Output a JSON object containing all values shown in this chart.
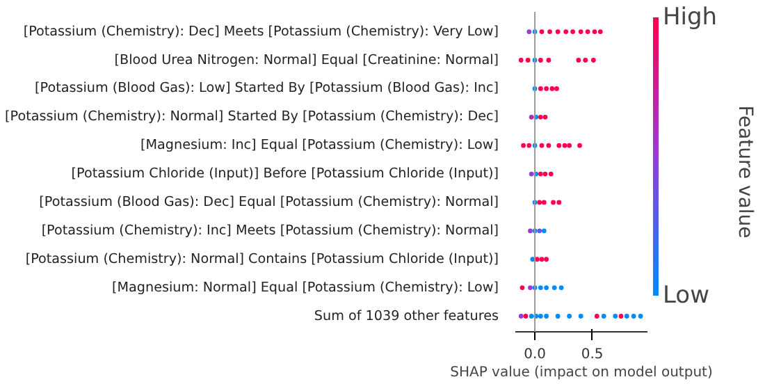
{
  "chart_data": {
    "type": "scatter",
    "orientation": "horizontal",
    "xlabel": "SHAP value (impact on model output)",
    "clabel": "Feature value",
    "categories": [
      "[Potassium (Chemistry): Dec] Meets [Potassium (Chemistry): Very Low]",
      "[Blood Urea Nitrogen: Normal] Equal [Creatinine: Normal]",
      "[Potassium (Blood Gas): Low] Started By [Potassium (Blood Gas): Inc]",
      "[Potassium (Chemistry): Normal] Started By [Potassium (Chemistry): Dec]",
      "[Magnesium: Inc] Equal [Potassium (Chemistry): Low]",
      "[Potassium Chloride (Input)] Before [Potassium Chloride (Input)]",
      "[Potassium (Blood Gas): Dec] Equal [Potassium (Chemistry): Normal]",
      "[Potassium (Chemistry): Inc] Meets [Potassium (Chemistry): Normal]",
      "[Potassium (Chemistry): Normal] Contains [Potassium Chloride (Input)]",
      "[Magnesium: Normal] Equal [Potassium (Chemistry): Low]",
      "Sum of 1039 other features"
    ],
    "xlim": [
      -0.17,
      0.98
    ],
    "xticks": [
      {
        "value": 0,
        "label": "0.0"
      },
      {
        "value": 0.5,
        "label": "0.5"
      }
    ],
    "clim": [
      0,
      1
    ],
    "cticks": [
      {
        "value": 0,
        "label": "Low"
      },
      {
        "value": 1,
        "label": "High"
      }
    ],
    "ref_lines": [
      {
        "axis": "x",
        "value": 0,
        "color": "#999999"
      }
    ],
    "marker": "circle",
    "grid": false,
    "series": [
      {
        "x": [
          "[Potassium (Chemistry): Dec] Meets [Potassium (Chemistry): Very Low]",
          "[Potassium (Chemistry): Dec] Meets [Potassium (Chemistry): Very Low]",
          "[Potassium (Chemistry): Dec] Meets [Potassium (Chemistry): Very Low]",
          "[Potassium (Chemistry): Dec] Meets [Potassium (Chemistry): Very Low]",
          "[Potassium (Chemistry): Dec] Meets [Potassium (Chemistry): Very Low]",
          "[Potassium (Chemistry): Dec] Meets [Potassium (Chemistry): Very Low]",
          "[Potassium (Chemistry): Dec] Meets [Potassium (Chemistry): Very Low]",
          "[Potassium (Chemistry): Dec] Meets [Potassium (Chemistry): Very Low]",
          "[Potassium (Chemistry): Dec] Meets [Potassium (Chemistry): Very Low]",
          "[Potassium (Chemistry): Dec] Meets [Potassium (Chemistry): Very Low]",
          "[Potassium (Chemistry): Dec] Meets [Potassium (Chemistry): Very Low]"
        ],
        "values": [
          -0.05,
          0,
          0.06,
          0.13,
          0.2,
          0.27,
          0.33,
          0.4,
          0.46,
          0.52,
          0.57
        ],
        "colors": [
          "#963cdc",
          "#008bfb",
          "#ff0052",
          "#ff0052",
          "#ff0052",
          "#ff0052",
          "#ff0052",
          "#ff0052",
          "#ff0052",
          "#ff0052",
          "#ff0052"
        ]
      },
      {
        "x": [
          "[Blood Urea Nitrogen: Normal] Equal [Creatinine: Normal]",
          "[Blood Urea Nitrogen: Normal] Equal [Creatinine: Normal]",
          "[Blood Urea Nitrogen: Normal] Equal [Creatinine: Normal]",
          "[Blood Urea Nitrogen: Normal] Equal [Creatinine: Normal]",
          "[Blood Urea Nitrogen: Normal] Equal [Creatinine: Normal]",
          "[Blood Urea Nitrogen: Normal] Equal [Creatinine: Normal]",
          "[Blood Urea Nitrogen: Normal] Equal [Creatinine: Normal]",
          "[Blood Urea Nitrogen: Normal] Equal [Creatinine: Normal]"
        ],
        "values": [
          -0.12,
          -0.06,
          0,
          0.05,
          0.12,
          0.38,
          0.44,
          0.51
        ],
        "colors": [
          "#ff0052",
          "#ff0052",
          "#008bfb",
          "#ff0052",
          "#ff0052",
          "#ff0052",
          "#ff0052",
          "#ff0052"
        ]
      },
      {
        "x": [
          "[Potassium (Blood Gas): Low] Started By [Potassium (Blood Gas): Inc]",
          "[Potassium (Blood Gas): Low] Started By [Potassium (Blood Gas): Inc]",
          "[Potassium (Blood Gas): Low] Started By [Potassium (Blood Gas): Inc]",
          "[Potassium (Blood Gas): Low] Started By [Potassium (Blood Gas): Inc]",
          "[Potassium (Blood Gas): Low] Started By [Potassium (Blood Gas): Inc]"
        ],
        "values": [
          0,
          0.05,
          0.1,
          0.15,
          0.19
        ],
        "colors": [
          "#008bfb",
          "#ff0052",
          "#ff0052",
          "#ff0052",
          "#ff0052"
        ]
      },
      {
        "x": [
          "[Potassium (Chemistry): Normal] Started By [Potassium (Chemistry): Dec]",
          "[Potassium (Chemistry): Normal] Started By [Potassium (Chemistry): Dec]",
          "[Potassium (Chemistry): Normal] Started By [Potassium (Chemistry): Dec]",
          "[Potassium (Chemistry): Normal] Started By [Potassium (Chemistry): Dec]"
        ],
        "values": [
          -0.03,
          0.01,
          0.05,
          0.09
        ],
        "colors": [
          "#c024a5",
          "#008bfb",
          "#ff0052",
          "#ff0052"
        ]
      },
      {
        "x": [
          "[Magnesium: Inc] Equal [Potassium (Chemistry): Low]",
          "[Magnesium: Inc] Equal [Potassium (Chemistry): Low]",
          "[Magnesium: Inc] Equal [Potassium (Chemistry): Low]",
          "[Magnesium: Inc] Equal [Potassium (Chemistry): Low]",
          "[Magnesium: Inc] Equal [Potassium (Chemistry): Low]",
          "[Magnesium: Inc] Equal [Potassium (Chemistry): Low]",
          "[Magnesium: Inc] Equal [Potassium (Chemistry): Low]",
          "[Magnesium: Inc] Equal [Potassium (Chemistry): Low]",
          "[Magnesium: Inc] Equal [Potassium (Chemistry): Low]"
        ],
        "values": [
          -0.1,
          -0.05,
          0,
          0.06,
          0.12,
          0.21,
          0.26,
          0.3,
          0.39
        ],
        "colors": [
          "#ff0052",
          "#ff0052",
          "#008bfb",
          "#ff0052",
          "#ff0052",
          "#ff0052",
          "#ff0052",
          "#ff0052",
          "#ff0052"
        ]
      },
      {
        "x": [
          "[Potassium Chloride (Input)] Before [Potassium Chloride (Input)]",
          "[Potassium Chloride (Input)] Before [Potassium Chloride (Input)]",
          "[Potassium Chloride (Input)] Before [Potassium Chloride (Input)]",
          "[Potassium Chloride (Input)] Before [Potassium Chloride (Input)]",
          "[Potassium Chloride (Input)] Before [Potassium Chloride (Input)]"
        ],
        "values": [
          -0.03,
          0.01,
          0.05,
          0.09,
          0.14
        ],
        "colors": [
          "#963cdc",
          "#008bfb",
          "#ff0052",
          "#ff0052",
          "#ff0052"
        ]
      },
      {
        "x": [
          "[Potassium (Blood Gas): Dec] Equal [Potassium (Chemistry): Normal]",
          "[Potassium (Blood Gas): Dec] Equal [Potassium (Chemistry): Normal]",
          "[Potassium (Blood Gas): Dec] Equal [Potassium (Chemistry): Normal]",
          "[Potassium (Blood Gas): Dec] Equal [Potassium (Chemistry): Normal]",
          "[Potassium (Blood Gas): Dec] Equal [Potassium (Chemistry): Normal]"
        ],
        "values": [
          0,
          0.04,
          0.08,
          0.16,
          0.21
        ],
        "colors": [
          "#008bfb",
          "#ff0052",
          "#ff0052",
          "#ff0052",
          "#ff0052"
        ]
      },
      {
        "x": [
          "[Potassium (Chemistry): Inc] Meets [Potassium (Chemistry): Normal]",
          "[Potassium (Chemistry): Inc] Meets [Potassium (Chemistry): Normal]",
          "[Potassium (Chemistry): Inc] Meets [Potassium (Chemistry): Normal]",
          "[Potassium (Chemistry): Inc] Meets [Potassium (Chemistry): Normal]"
        ],
        "values": [
          -0.04,
          0,
          0.04,
          0.08
        ],
        "colors": [
          "#963cdc",
          "#008bfb",
          "#5a5ce8",
          "#008bfb"
        ]
      },
      {
        "x": [
          "[Potassium (Chemistry): Normal] Contains [Potassium Chloride (Input)]",
          "[Potassium (Chemistry): Normal] Contains [Potassium Chloride (Input)]",
          "[Potassium (Chemistry): Normal] Contains [Potassium Chloride (Input)]",
          "[Potassium (Chemistry): Normal] Contains [Potassium Chloride (Input)]"
        ],
        "values": [
          -0.02,
          0.02,
          0.06,
          0.1
        ],
        "colors": [
          "#008bfb",
          "#ff0052",
          "#ff0052",
          "#ff0052"
        ]
      },
      {
        "x": [
          "[Magnesium: Normal] Equal [Potassium (Chemistry): Low]",
          "[Magnesium: Normal] Equal [Potassium (Chemistry): Low]",
          "[Magnesium: Normal] Equal [Potassium (Chemistry): Low]",
          "[Magnesium: Normal] Equal [Potassium (Chemistry): Low]",
          "[Magnesium: Normal] Equal [Potassium (Chemistry): Low]",
          "[Magnesium: Normal] Equal [Potassium (Chemistry): Low]",
          "[Magnesium: Normal] Equal [Potassium (Chemistry): Low]"
        ],
        "values": [
          -0.11,
          -0.04,
          0,
          0.05,
          0.1,
          0.17,
          0.23
        ],
        "colors": [
          "#ff0052",
          "#963cdc",
          "#008bfb",
          "#008bfb",
          "#008bfb",
          "#008bfb",
          "#008bfb"
        ]
      },
      {
        "x": [
          "Sum of 1039 other features",
          "Sum of 1039 other features",
          "Sum of 1039 other features",
          "Sum of 1039 other features",
          "Sum of 1039 other features",
          "Sum of 1039 other features",
          "Sum of 1039 other features",
          "Sum of 1039 other features",
          "Sum of 1039 other features",
          "Sum of 1039 other features",
          "Sum of 1039 other features",
          "Sum of 1039 other features",
          "Sum of 1039 other features",
          "Sum of 1039 other features",
          "Sum of 1039 other features",
          "Sum of 1039 other features"
        ],
        "values": [
          -0.12,
          -0.08,
          -0.03,
          0.01,
          0.05,
          0.1,
          0.2,
          0.3,
          0.4,
          0.54,
          0.6,
          0.7,
          0.75,
          0.8,
          0.86,
          0.92
        ],
        "colors": [
          "#963cdc",
          "#ff0052",
          "#008bfb",
          "#008bfb",
          "#008bfb",
          "#008bfb",
          "#008bfb",
          "#008bfb",
          "#008bfb",
          "#ff0052",
          "#008bfb",
          "#008bfb",
          "#ff0052",
          "#008bfb",
          "#008bfb",
          "#008bfb"
        ]
      }
    ]
  }
}
